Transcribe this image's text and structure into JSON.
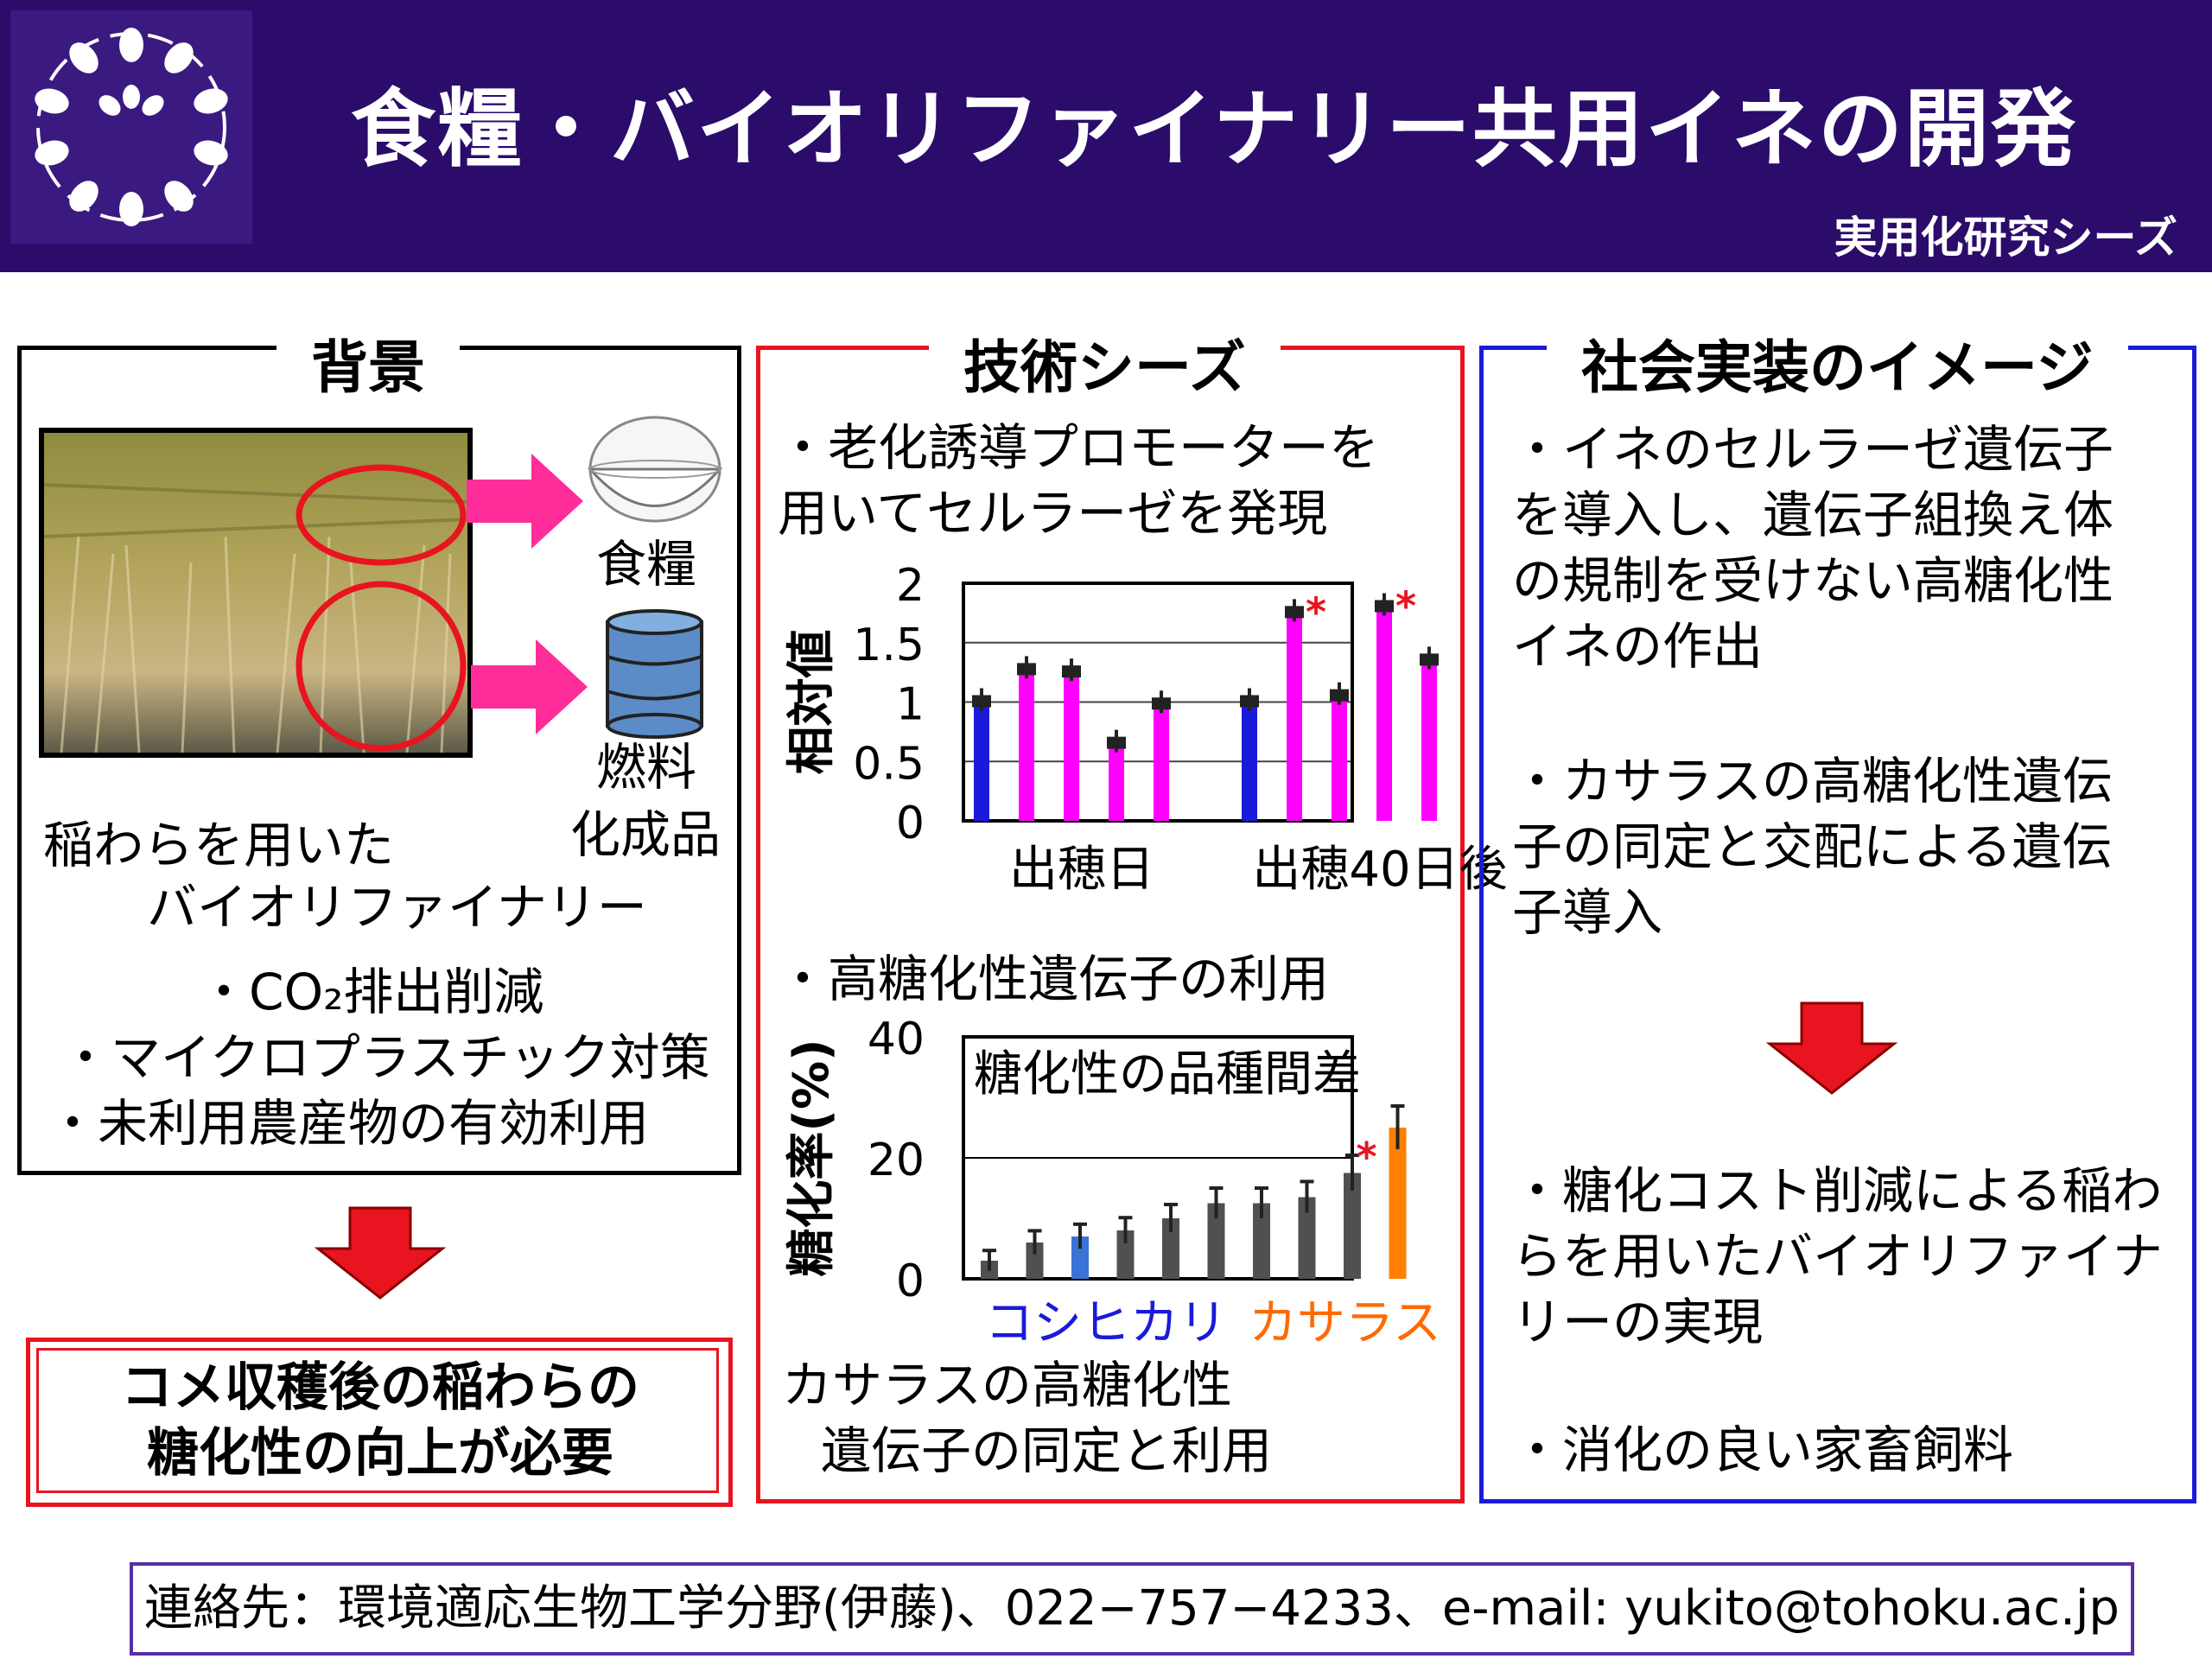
{
  "header": {
    "title": "食糧・バイオリファイナリー共用イネの開発",
    "subtitle": "実用化研究シーズ",
    "logo_icon": "laurel-wreath-logo",
    "background_color": "#2b0c6b"
  },
  "background_panel": {
    "heading": "背景",
    "food_label": "食糧",
    "fuel_label_line1": "燃料",
    "fuel_label_line2": "化成品",
    "caption_line1": "稲わらを用いた",
    "caption_line2": "バイオリファイナリー",
    "bullets": [
      "・CO₂排出削減",
      "・マイクロプラスチック対策",
      "・未利用農産物の有効利用"
    ],
    "need_line1": "コメ収穫後の稲わらの",
    "need_line2": "糖化性の向上が必要",
    "icons": [
      "rice-bowl-icon",
      "barrel-icon",
      "arrow-right-icon",
      "arrow-down-icon"
    ]
  },
  "tech_panel": {
    "heading": "技術シーズ",
    "point1_line1": "・老化誘導プロモーターを",
    "point1_line2": "用いてセルラーゼを発現",
    "point2": "・高糖化性遺伝子の利用",
    "conclusion_line1": "カサラスの高糖化性",
    "conclusion_line2": "遺伝子の同定と利用"
  },
  "chart_data": [
    {
      "type": "bar",
      "ylabel": "相対値",
      "ylim": [
        0,
        2
      ],
      "yticks": [
        "0",
        "0.5",
        "1",
        "1.5",
        "2"
      ],
      "group_labels": [
        "出穂日",
        "出穂40日後"
      ],
      "groups": [
        {
          "label": "出穂日",
          "values": [
            1.0,
            1.27,
            1.25,
            0.65,
            0.98
          ],
          "colors": [
            "#1a1adb",
            "#ff00ff",
            "#ff00ff",
            "#ff00ff",
            "#ff00ff"
          ]
        },
        {
          "label": "出穂40日後",
          "values": [
            1.0,
            1.75,
            1.05,
            1.8,
            1.35
          ],
          "colors": [
            "#1a1adb",
            "#ff00ff",
            "#ff00ff",
            "#ff00ff",
            "#ff00ff"
          ]
        }
      ],
      "significance_marks": [
        "*",
        "*"
      ],
      "grid": true
    },
    {
      "type": "bar",
      "title": "糖化性の品種間差",
      "ylabel": "糖化率(%)",
      "ylim": [
        0,
        40
      ],
      "yticks": [
        "0",
        "20",
        "40"
      ],
      "values": [
        3,
        6,
        7,
        8,
        10,
        12.5,
        12.5,
        13.5,
        17.5,
        25
      ],
      "colors": [
        "#505050",
        "#505050",
        "#3a73d6",
        "#505050",
        "#505050",
        "#505050",
        "#505050",
        "#505050",
        "#505050",
        "#ff8000"
      ],
      "highlight_labels": [
        {
          "text": "コシヒカリ",
          "color": "#1a1adb"
        },
        {
          "text": "カサラス",
          "color": "#ff6a00"
        }
      ],
      "significance_marks": [
        "*"
      ],
      "grid": true
    }
  ],
  "social_panel": {
    "heading": "社会実装のイメージ",
    "item1": [
      "・イネのセルラーゼ遺伝子",
      "を導入し、遺伝子組換え体",
      "の規制を受けない高糖化性",
      "イネの作出"
    ],
    "item2": [
      "・カサラスの高糖化性遺伝",
      "子の同定と交配による遺伝",
      "子導入"
    ],
    "item3": [
      "・糖化コスト削減による稲わ",
      "らを用いたバイオリファイナ",
      "リーの実現"
    ],
    "item4": [
      "・消化の良い家畜飼料"
    ]
  },
  "footer": {
    "contact": "連絡先：環境適応生物工学分野(伊藤)、022−757−4233、e-mail: yukito@tohoku.ac.jp"
  }
}
